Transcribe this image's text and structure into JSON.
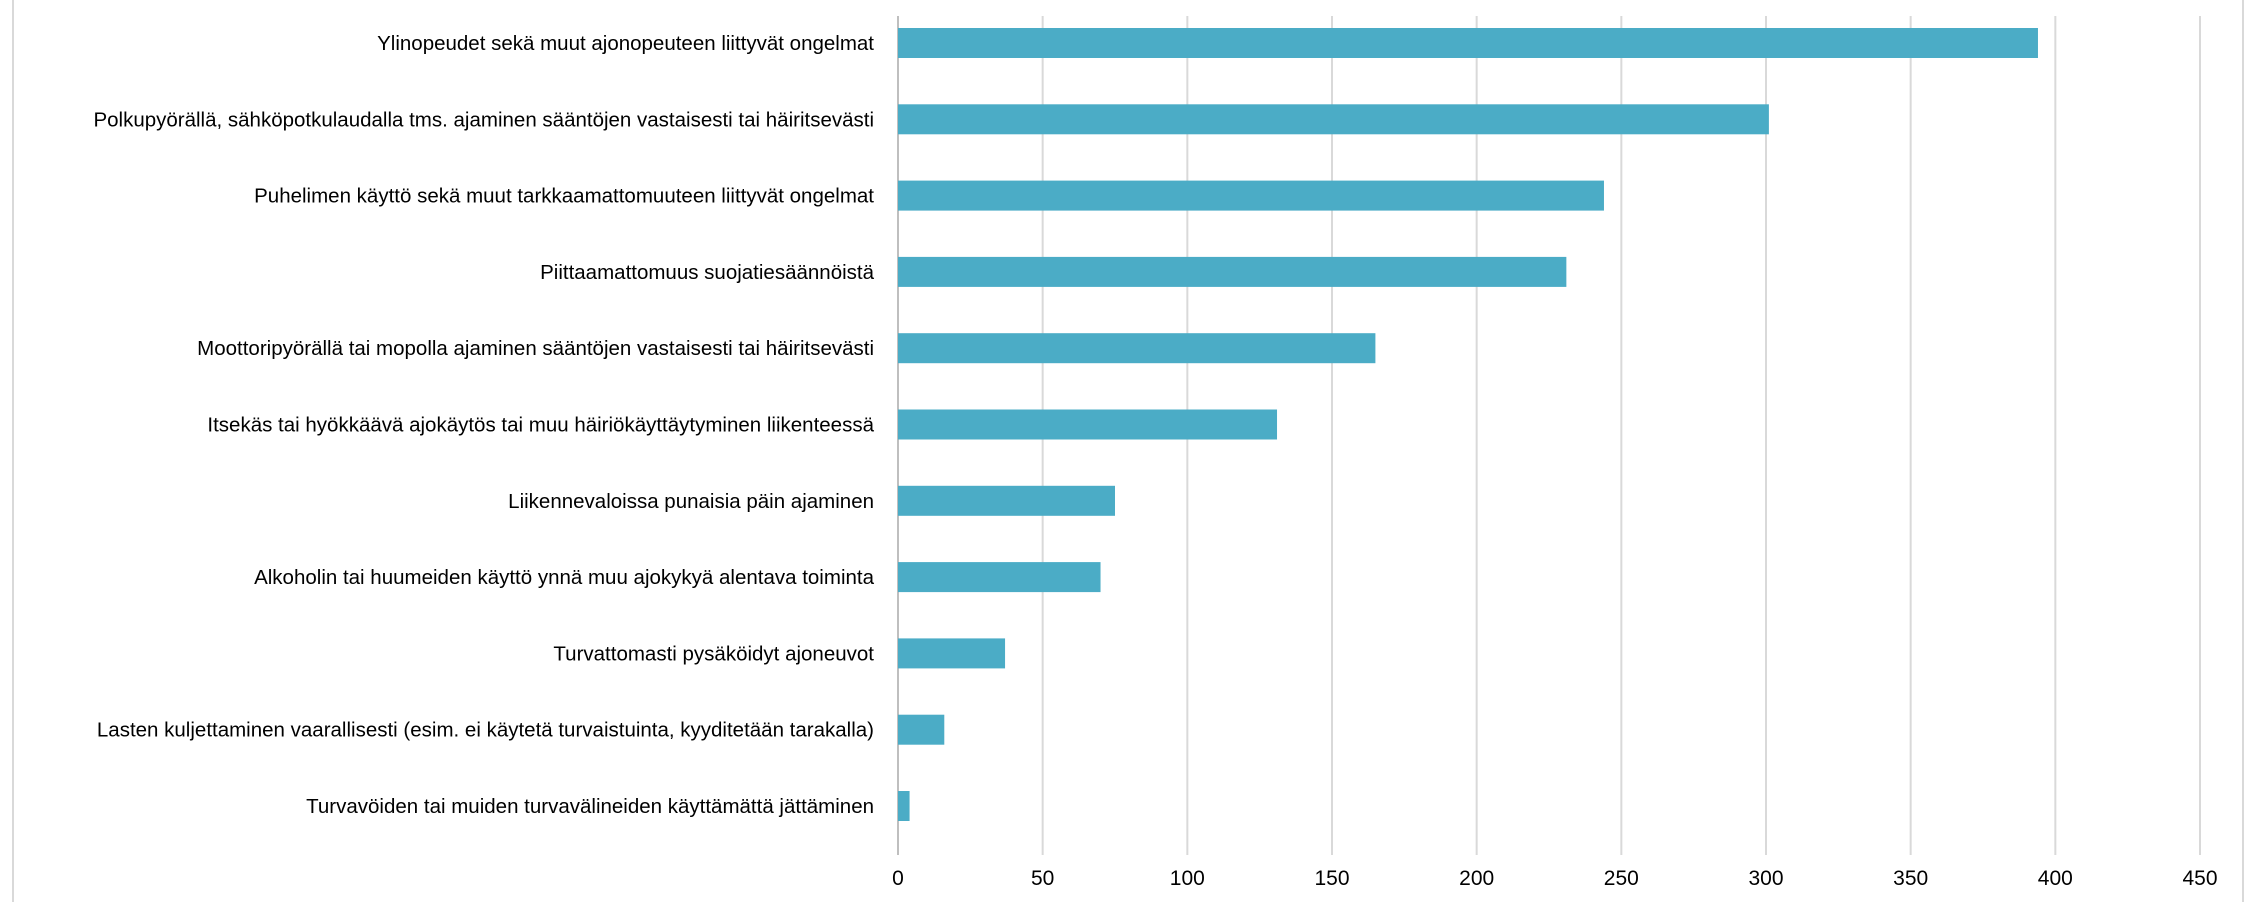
{
  "chart_data": {
    "type": "bar",
    "orientation": "horizontal",
    "categories": [
      "Ylinopeudet sekä muut ajonopeuteen liittyvät ongelmat",
      "Polkupyörällä, sähköpotkulaudalla tms. ajaminen sääntöjen vastaisesti tai häiritsevästi",
      "Puhelimen käyttö sekä muut tarkkaamattomuuteen liittyvät ongelmat",
      "Piittaamattomuus suojatiesäännöistä",
      "Moottoripyörällä tai mopolla ajaminen sääntöjen vastaisesti tai häiritsevästi",
      "Itsekäs tai hyökkäävä ajokäytös tai muu häiriökäyttäytyminen liikenteessä",
      "Liikennevaloissa punaisia päin ajaminen",
      "Alkoholin tai huumeiden käyttö ynnä muu ajokykyä alentava toiminta",
      "Turvattomasti pysäköidyt ajoneuvot",
      "Lasten kuljettaminen vaarallisesti (esim. ei käytetä turvaistuinta, kyyditetään tarakalla)",
      "Turvavöiden tai muiden turvavälineiden käyttämättä jättäminen"
    ],
    "values": [
      394,
      301,
      244,
      231,
      165,
      131,
      75,
      70,
      37,
      16,
      4
    ],
    "xlim": [
      0,
      450
    ],
    "xticks": [
      "0",
      "50",
      "100",
      "150",
      "200",
      "250",
      "300",
      "350",
      "400",
      "450"
    ],
    "title": "",
    "xlabel": "",
    "ylabel": "",
    "grid": "vertical",
    "legend": "none",
    "bar_color": "#4bacc6",
    "grid_color": "#d9d9d9"
  }
}
